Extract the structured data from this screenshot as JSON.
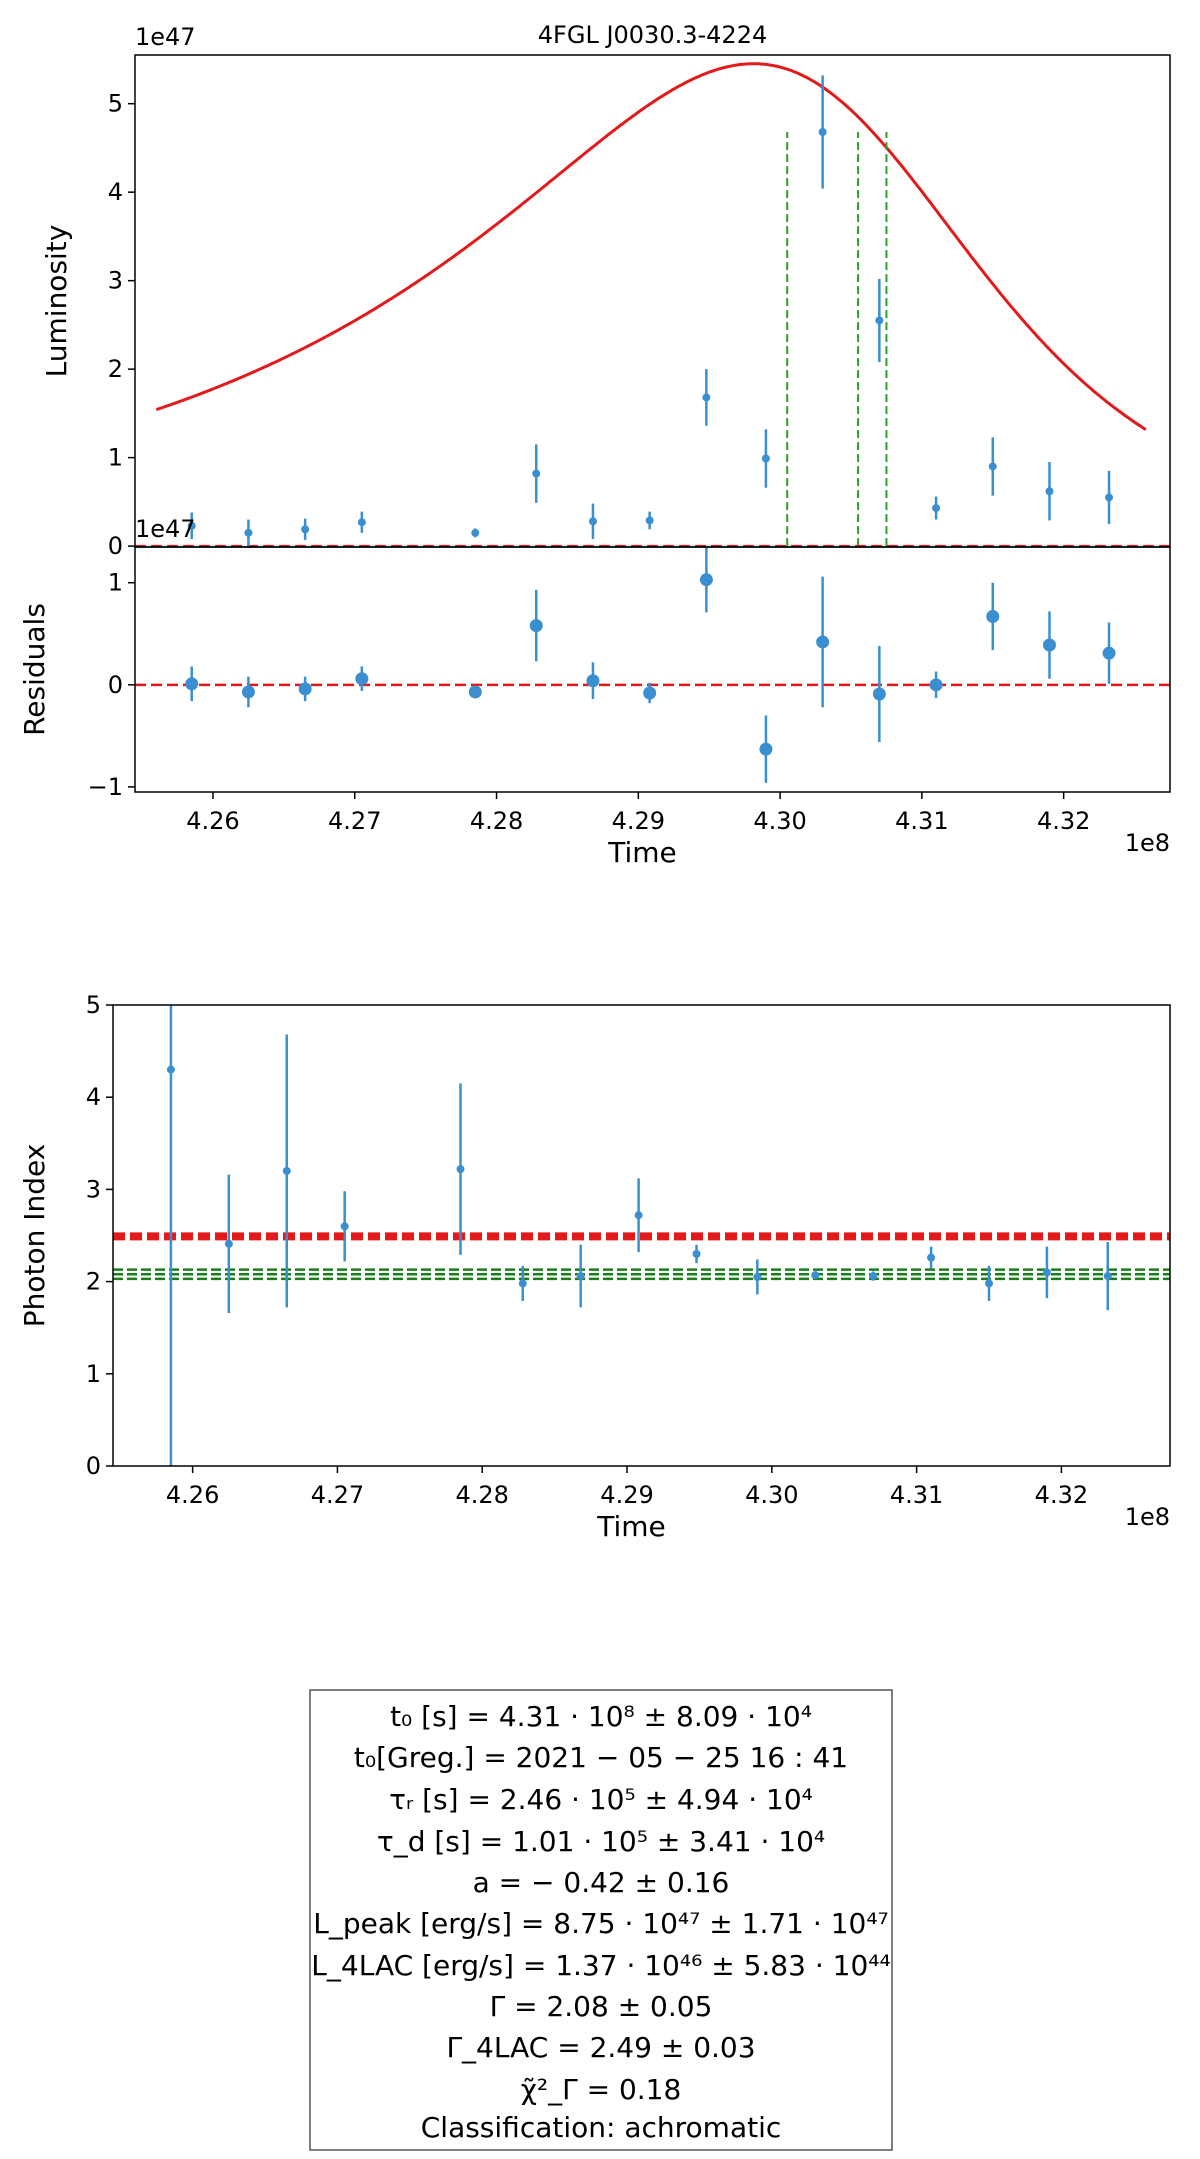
{
  "chart_data": [
    {
      "type": "scatter",
      "name": "light-curve",
      "title": "4FGL J0030.3-4224",
      "xlabel": "",
      "ylabel": "Luminosity",
      "y_offset_label": "1e47",
      "xlim": [
        4.2545,
        4.3275
      ],
      "ylim": [
        -0.01,
        5.55
      ],
      "yticks": [
        0,
        1,
        2,
        3,
        4,
        5
      ],
      "points": [
        {
          "x": 4.2585,
          "y": 0.23,
          "err": 0.15
        },
        {
          "x": 4.2625,
          "y": 0.15,
          "err": 0.15
        },
        {
          "x": 4.2665,
          "y": 0.19,
          "err": 0.12
        },
        {
          "x": 4.2705,
          "y": 0.27,
          "err": 0.12
        },
        {
          "x": 4.2785,
          "y": 0.15,
          "err": 0.05
        },
        {
          "x": 4.2828,
          "y": 0.82,
          "err": 0.33
        },
        {
          "x": 4.2868,
          "y": 0.28,
          "err": 0.2
        },
        {
          "x": 4.2908,
          "y": 0.29,
          "err": 0.1
        },
        {
          "x": 4.2948,
          "y": 1.68,
          "err": 0.32
        },
        {
          "x": 4.299,
          "y": 0.99,
          "err": 0.33
        },
        {
          "x": 4.303,
          "y": 4.68,
          "err": 0.64
        },
        {
          "x": 4.307,
          "y": 2.55,
          "err": 0.47
        },
        {
          "x": 4.311,
          "y": 0.43,
          "err": 0.13
        },
        {
          "x": 4.315,
          "y": 0.9,
          "err": 0.33
        },
        {
          "x": 4.319,
          "y": 0.62,
          "err": 0.33
        },
        {
          "x": 4.3232,
          "y": 0.55,
          "err": 0.3
        }
      ],
      "model": {
        "baseline": 0.21,
        "peak_x": 4.3045,
        "peak_y": 5.0,
        "tau_rise": 0.0246,
        "tau_decay": 0.0101,
        "x_range": [
          4.256,
          4.3258
        ]
      },
      "baseline_line_y": 0.0,
      "vlines": [
        4.3005,
        4.3055,
        4.3075
      ],
      "vline_ymax": 4.68,
      "colors": {
        "points": "#3a8fd0",
        "model": "#e31a1c",
        "baseline": "#e31a1c",
        "vlines": "#2ca02c"
      }
    },
    {
      "type": "scatter",
      "name": "residuals",
      "xlabel": "Time",
      "ylabel": "Residuals",
      "x_offset_label": "1e8",
      "y_offset_label": "1e47",
      "xlim": [
        4.2545,
        4.3275
      ],
      "ylim": [
        -1.05,
        1.35
      ],
      "xticks": [
        4.26,
        4.27,
        4.28,
        4.29,
        4.3,
        4.31,
        4.32
      ],
      "xtick_labels": [
        "4.26",
        "4.27",
        "4.28",
        "4.29",
        "4.30",
        "4.31",
        "4.32"
      ],
      "yticks": [
        -1,
        0,
        1
      ],
      "ytick_labels": [
        "−1",
        "0",
        "1"
      ],
      "points": [
        {
          "x": 4.2585,
          "y": 0.01,
          "err": 0.17
        },
        {
          "x": 4.2625,
          "y": -0.07,
          "err": 0.15
        },
        {
          "x": 4.2665,
          "y": -0.04,
          "err": 0.12
        },
        {
          "x": 4.2705,
          "y": 0.06,
          "err": 0.12
        },
        {
          "x": 4.2785,
          "y": -0.07,
          "err": 0.05
        },
        {
          "x": 4.2828,
          "y": 0.58,
          "err": 0.35
        },
        {
          "x": 4.2868,
          "y": 0.04,
          "err": 0.18
        },
        {
          "x": 4.2908,
          "y": -0.08,
          "err": 0.1
        },
        {
          "x": 4.2948,
          "y": 1.03,
          "err": 0.32
        },
        {
          "x": 4.299,
          "y": -0.63,
          "err": 0.33
        },
        {
          "x": 4.303,
          "y": 0.42,
          "err": 0.64
        },
        {
          "x": 4.307,
          "y": -0.09,
          "err": 0.47
        },
        {
          "x": 4.311,
          "y": 0.0,
          "err": 0.13
        },
        {
          "x": 4.315,
          "y": 0.67,
          "err": 0.33
        },
        {
          "x": 4.319,
          "y": 0.39,
          "err": 0.33
        },
        {
          "x": 4.3232,
          "y": 0.31,
          "err": 0.3
        }
      ],
      "zero_line_y": 0.0,
      "colors": {
        "points": "#3a8fd0",
        "zero_line": "#e31a1c"
      }
    },
    {
      "type": "scatter",
      "name": "photon-index",
      "xlabel": "Time",
      "ylabel": "Photon Index",
      "x_offset_label": "1e8",
      "xlim": [
        4.2545,
        4.3275
      ],
      "ylim": [
        0,
        5
      ],
      "xticks": [
        4.26,
        4.27,
        4.28,
        4.29,
        4.3,
        4.31,
        4.32
      ],
      "xtick_labels": [
        "4.26",
        "4.27",
        "4.28",
        "4.29",
        "4.30",
        "4.31",
        "4.32"
      ],
      "yticks": [
        0,
        1,
        2,
        3,
        4,
        5
      ],
      "points": [
        {
          "x": 4.2585,
          "y": 4.3,
          "err": 4.3
        },
        {
          "x": 4.2625,
          "y": 2.41,
          "err": 0.75
        },
        {
          "x": 4.2665,
          "y": 3.2,
          "err": 1.48
        },
        {
          "x": 4.2705,
          "y": 2.6,
          "err": 0.38
        },
        {
          "x": 4.2785,
          "y": 3.22,
          "err": 0.93
        },
        {
          "x": 4.2828,
          "y": 1.98,
          "err": 0.19
        },
        {
          "x": 4.2868,
          "y": 2.06,
          "err": 0.34
        },
        {
          "x": 4.2908,
          "y": 2.72,
          "err": 0.4
        },
        {
          "x": 4.2948,
          "y": 2.3,
          "err": 0.1
        },
        {
          "x": 4.299,
          "y": 2.05,
          "err": 0.19
        },
        {
          "x": 4.303,
          "y": 2.07,
          "err": 0.04
        },
        {
          "x": 4.307,
          "y": 2.06,
          "err": 0.05
        },
        {
          "x": 4.311,
          "y": 2.26,
          "err": 0.12
        },
        {
          "x": 4.315,
          "y": 1.98,
          "err": 0.19
        },
        {
          "x": 4.319,
          "y": 2.1,
          "err": 0.28
        },
        {
          "x": 4.3232,
          "y": 2.06,
          "err": 0.37
        }
      ],
      "hlines": [
        {
          "y": 2.49,
          "color": "#e31a1c",
          "style": "thick-dashed"
        },
        {
          "y": 2.13,
          "color": "#1a7f1a",
          "style": "dashed"
        },
        {
          "y": 2.08,
          "color": "#1a7f1a",
          "style": "dashed"
        },
        {
          "y": 2.03,
          "color": "#1a7f1a",
          "style": "dashed"
        }
      ],
      "colors": {
        "points": "#3a8fd0"
      }
    }
  ],
  "info_box": {
    "lines": [
      "t₀ [s] = 4.31 · 10⁸  ±  8.09 · 10⁴",
      "t₀[Greg.] = 2021 − 05 − 25 16 : 41",
      "τᵣ [s] = 2.46 · 10⁵  ±  4.94 · 10⁴",
      "τ_d [s] = 1.01 · 10⁵  ±  3.41 · 10⁴",
      "a = − 0.42 ±  0.16",
      "L_peak [erg/s] = 8.75 · 10⁴⁷  ±  1.71 · 10⁴⁷",
      "L_4LAC [erg/s] = 1.37 · 10⁴⁶  ±  5.83 · 10⁴⁴",
      "Γ = 2.08 ± 0.05",
      "Γ_4LAC = 2.49 ± 0.03",
      "χ̃²_Γ = 0.18",
      "Classification: achromatic"
    ]
  }
}
